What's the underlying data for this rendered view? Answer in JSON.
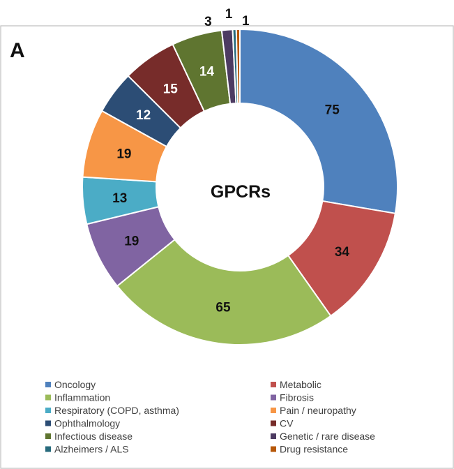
{
  "chart_data": {
    "type": "pie",
    "variant": "donut",
    "panel_label": "A",
    "center_label": "GPCRs",
    "labels": [
      "Oncology",
      "Metabolic",
      "Inflammation",
      "Fibrosis",
      "Respiratory (COPD, asthma)",
      "Pain / neuropathy",
      "Ophthalmology",
      "CV",
      "Infectious disease",
      "Genetic / rare disease",
      "Alzheimers / ALS",
      "Drug resistance"
    ],
    "values": [
      75,
      34,
      65,
      19,
      13,
      19,
      12,
      15,
      14,
      3,
      1,
      1
    ],
    "data_labels": [
      "75",
      "34",
      "65",
      "19",
      "13",
      "19",
      "12",
      "15",
      "14",
      "3",
      "1",
      "1"
    ],
    "colors": [
      "#4f81bd",
      "#c0504d",
      "#9bbb59",
      "#8064a2",
      "#4bacc6",
      "#f79646",
      "#2c4d75",
      "#772c2a",
      "#5f7530",
      "#4d3b62",
      "#276a7c",
      "#b65708"
    ],
    "label_colors": [
      "#111111",
      "#111111",
      "#111111",
      "#111111",
      "#111111",
      "#111111",
      "#ffffff",
      "#ffffff",
      "#ffffff",
      "#111111",
      "#111111",
      "#111111"
    ],
    "legend": {
      "position": "bottom",
      "columns": 2
    }
  }
}
